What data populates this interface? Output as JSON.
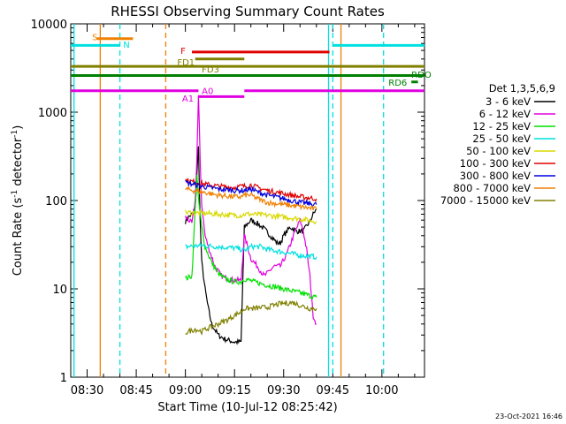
{
  "chart_data": {
    "type": "line",
    "title": "RHESSI Observing Summary Count Rates",
    "xlabel": "Start Time (10-Jul-12 08:25:42)",
    "ylabel_main": "Count Rate (s",
    "ylabel_sup1": "-1",
    "ylabel_mid": " detector",
    "ylabel_sup2": "-1",
    "ylabel_end": ")",
    "yscale": "log",
    "ylim": [
      1,
      10000
    ],
    "xlim_minutes_since_0825": [
      0,
      108
    ],
    "x_ticks": [
      {
        "label": "08:30",
        "t": 5
      },
      {
        "label": "08:45",
        "t": 20
      },
      {
        "label": "09:00",
        "t": 35
      },
      {
        "label": "09:15",
        "t": 50
      },
      {
        "label": "09:30",
        "t": 65
      },
      {
        "label": "09:45",
        "t": 80
      },
      {
        "label": "10:00",
        "t": 95
      }
    ],
    "y_ticks": [
      {
        "label": "1",
        "v": 1
      },
      {
        "label": "10",
        "v": 10
      },
      {
        "label": "100",
        "v": 100
      },
      {
        "label": "1000",
        "v": 1000
      },
      {
        "label": "10000",
        "v": 10000
      }
    ],
    "legend_title": "Det 1,3,5,6,9",
    "legend_position": "right",
    "series": [
      {
        "name": "3 - 6 keV",
        "color": "#000000",
        "points": [
          [
            35,
            58
          ],
          [
            36,
            65
          ],
          [
            37,
            70
          ],
          [
            38,
            80
          ],
          [
            38.5,
            200
          ],
          [
            39,
            400
          ],
          [
            39.5,
            60
          ],
          [
            40,
            20
          ],
          [
            41,
            10
          ],
          [
            42,
            6
          ],
          [
            43,
            4
          ],
          [
            45,
            3
          ],
          [
            47,
            2.7
          ],
          [
            50,
            2.5
          ],
          [
            52,
            2.5
          ],
          [
            53,
            50
          ],
          [
            55,
            60
          ],
          [
            57,
            55
          ],
          [
            59,
            48
          ],
          [
            61,
            40
          ],
          [
            63,
            33
          ],
          [
            64,
            33
          ],
          [
            65,
            40
          ],
          [
            67,
            50
          ],
          [
            69,
            45
          ],
          [
            71,
            45
          ],
          [
            73,
            58
          ],
          [
            74,
            70
          ],
          [
            75,
            80
          ]
        ]
      },
      {
        "name": "6 - 12 keV",
        "color": "#e000e0",
        "points": [
          [
            35,
            65
          ],
          [
            36,
            60
          ],
          [
            37,
            55
          ],
          [
            38,
            100
          ],
          [
            38.5,
            300
          ],
          [
            39,
            1500
          ],
          [
            39.5,
            300
          ],
          [
            40,
            90
          ],
          [
            41,
            40
          ],
          [
            42,
            30
          ],
          [
            44,
            18
          ],
          [
            46,
            14
          ],
          [
            48,
            13
          ],
          [
            50,
            12.5
          ],
          [
            52,
            12.5
          ],
          [
            53,
            40
          ],
          [
            54,
            30
          ],
          [
            55,
            22
          ],
          [
            57,
            18
          ],
          [
            59,
            14
          ],
          [
            60,
            15
          ],
          [
            62,
            18
          ],
          [
            64,
            18
          ],
          [
            66,
            25
          ],
          [
            68,
            40
          ],
          [
            70,
            60
          ],
          [
            71,
            45
          ],
          [
            72,
            28
          ],
          [
            73,
            14
          ],
          [
            74,
            5
          ],
          [
            75,
            4
          ]
        ]
      },
      {
        "name": "12 - 25 keV",
        "color": "#00e000",
        "points": [
          [
            35,
            13
          ],
          [
            37,
            14
          ],
          [
            38,
            80
          ],
          [
            38.5,
            200
          ],
          [
            39,
            100
          ],
          [
            40,
            50
          ],
          [
            41,
            30
          ],
          [
            43,
            20
          ],
          [
            45,
            15
          ],
          [
            47,
            13
          ],
          [
            50,
            12
          ],
          [
            52,
            12
          ],
          [
            53,
            13
          ],
          [
            56,
            12
          ],
          [
            60,
            11
          ],
          [
            65,
            10
          ],
          [
            70,
            9
          ],
          [
            75,
            8
          ]
        ]
      },
      {
        "name": "25 - 50 keV",
        "color": "#00e0e0",
        "points": [
          [
            35,
            30
          ],
          [
            40,
            31
          ],
          [
            45,
            30
          ],
          [
            50,
            29
          ],
          [
            52,
            28
          ],
          [
            53,
            27
          ],
          [
            55,
            30
          ],
          [
            58,
            30
          ],
          [
            60,
            28
          ],
          [
            65,
            26
          ],
          [
            70,
            24
          ],
          [
            75,
            23
          ]
        ]
      },
      {
        "name": "50 - 100 keV",
        "color": "#d8d800",
        "points": [
          [
            35,
            73
          ],
          [
            40,
            72
          ],
          [
            45,
            70
          ],
          [
            50,
            68
          ],
          [
            52,
            68
          ],
          [
            53,
            70
          ],
          [
            55,
            70
          ],
          [
            60,
            68
          ],
          [
            65,
            65
          ],
          [
            70,
            62
          ],
          [
            75,
            58
          ]
        ]
      },
      {
        "name": "100 - 300 keV",
        "color": "#e00000",
        "points": [
          [
            35,
            170
          ],
          [
            40,
            155
          ],
          [
            45,
            145
          ],
          [
            50,
            140
          ],
          [
            52,
            145
          ],
          [
            53,
            145
          ],
          [
            55,
            150
          ],
          [
            57,
            140
          ],
          [
            60,
            130
          ],
          [
            65,
            120
          ],
          [
            70,
            110
          ],
          [
            75,
            105
          ]
        ]
      },
      {
        "name": "300 - 800 keV",
        "color": "#0000e0",
        "points": [
          [
            35,
            160
          ],
          [
            40,
            145
          ],
          [
            45,
            135
          ],
          [
            50,
            130
          ],
          [
            52,
            130
          ],
          [
            53,
            130
          ],
          [
            55,
            135
          ],
          [
            57,
            125
          ],
          [
            60,
            115
          ],
          [
            65,
            105
          ],
          [
            70,
            95
          ],
          [
            75,
            90
          ]
        ]
      },
      {
        "name": "800 - 7000 keV",
        "color": "#f08000",
        "points": [
          [
            35,
            135
          ],
          [
            40,
            125
          ],
          [
            45,
            115
          ],
          [
            50,
            110
          ],
          [
            52,
            110
          ],
          [
            53,
            115
          ],
          [
            55,
            115
          ],
          [
            57,
            105
          ],
          [
            60,
            95
          ],
          [
            65,
            90
          ],
          [
            70,
            85
          ],
          [
            75,
            80
          ]
        ]
      },
      {
        "name": "7000 - 15000 keV",
        "color": "#808000",
        "points": [
          [
            35,
            3.2
          ],
          [
            38,
            3.5
          ],
          [
            40,
            3.3
          ],
          [
            42,
            3.6
          ],
          [
            45,
            4
          ],
          [
            48,
            4.5
          ],
          [
            50,
            5
          ],
          [
            52,
            5.5
          ],
          [
            53,
            6
          ],
          [
            56,
            6
          ],
          [
            60,
            6.2
          ],
          [
            64,
            6.8
          ],
          [
            68,
            7
          ],
          [
            70,
            6.5
          ],
          [
            73,
            6
          ],
          [
            75,
            6
          ]
        ]
      }
    ],
    "state_bars": [
      {
        "label": "S",
        "color": "#f08000",
        "t0": 8,
        "t1": 19,
        "level": 6800,
        "label_t": 6.5,
        "label_v": 7200
      },
      {
        "label": "N",
        "color": "#00e0e0",
        "t0": 0,
        "t1": 15,
        "level": 5700,
        "label_t": 16,
        "label_v": 5900
      },
      {
        "label": "N",
        "color": "#00e0e0",
        "t0": 80,
        "t1": 108,
        "level": 5700,
        "label_t": 0,
        "label_v": 0
      },
      {
        "label": "F",
        "color": "#e00000",
        "t0": 37,
        "t1": 79,
        "level": 4800,
        "label_t": 33.5,
        "label_v": 5000
      },
      {
        "label": "FD1",
        "color": "#808000",
        "t0": 38,
        "t1": 53,
        "level": 4000,
        "label_t": 32.5,
        "label_v": 3700
      },
      {
        "label": "FD3",
        "color": "#808000",
        "t0": 0,
        "t1": 108,
        "level": 3300,
        "label_t": 40,
        "label_v": 3100
      },
      {
        "label": "RDO",
        "color": "#008000",
        "t0": 0,
        "t1": 108,
        "level": 2600,
        "label_t": 104,
        "label_v": 2700
      },
      {
        "label": "RD6",
        "color": "#008000",
        "t0": 104,
        "t1": 106,
        "level": 2200,
        "label_t": 97,
        "label_v": 2200
      },
      {
        "label": "A1",
        "color": "#e000e0",
        "t0": 0,
        "t1": 39,
        "level": 1750,
        "label_t": 34,
        "label_v": 1450
      },
      {
        "label": "A0",
        "color": "#e000e0",
        "t0": 39,
        "t1": 53,
        "level": 1500,
        "label_t": 40,
        "label_v": 1750
      },
      {
        "label": "",
        "color": "#e000e0",
        "t0": 53,
        "t1": 108,
        "level": 1750,
        "label_t": 0,
        "label_v": 0
      }
    ],
    "vertical_markers": [
      {
        "t": 1,
        "color": "#00e0e0",
        "style": "solid"
      },
      {
        "t": 9,
        "color": "#f08000",
        "style": "solid"
      },
      {
        "t": 15,
        "color": "#00e0e0",
        "style": "dashed"
      },
      {
        "t": 29,
        "color": "#f08000",
        "style": "dashed"
      },
      {
        "t": 78.7,
        "color": "#00e0e0",
        "style": "solid"
      },
      {
        "t": 80,
        "color": "#00e0e0",
        "style": "dashed"
      },
      {
        "t": 95.5,
        "color": "#00e0e0",
        "style": "dashed"
      },
      {
        "t": 82.5,
        "color": "#f08000",
        "style": "solid"
      }
    ]
  },
  "timestamp": "23-Oct-2021 16:46"
}
